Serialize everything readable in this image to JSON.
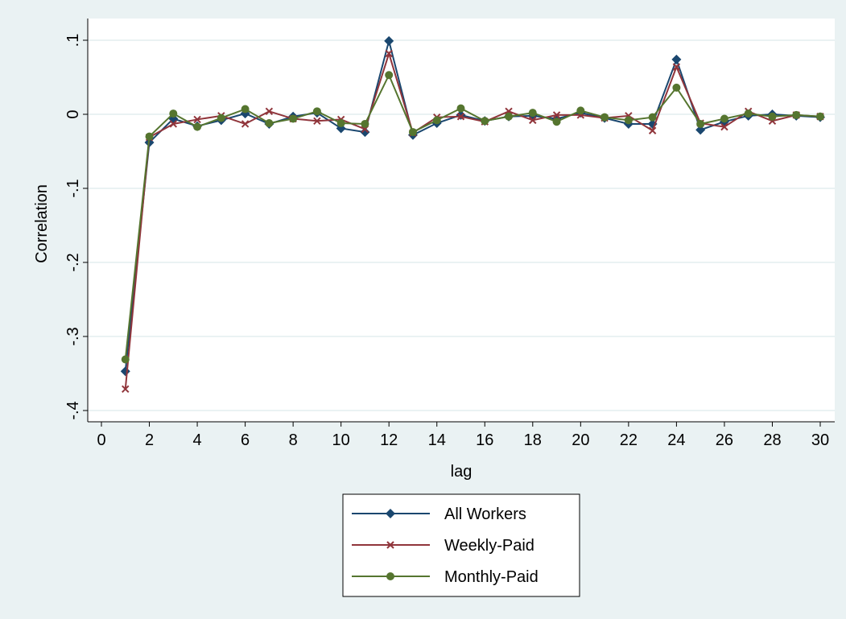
{
  "chart_data": {
    "type": "line",
    "xlabel": "lag",
    "ylabel": "Correlation",
    "xlim": [
      0,
      30
    ],
    "ylim": [
      -0.4,
      0.1
    ],
    "x_ticks": [
      0,
      2,
      4,
      6,
      8,
      10,
      12,
      14,
      16,
      18,
      20,
      22,
      24,
      26,
      28,
      30
    ],
    "x_tick_labels": [
      "0",
      "2",
      "4",
      "6",
      "8",
      "10",
      "12",
      "14",
      "16",
      "18",
      "20",
      "22",
      "24",
      "26",
      "28",
      "30"
    ],
    "y_ticks": [
      -0.4,
      -0.3,
      -0.2,
      -0.1,
      0,
      0.1
    ],
    "y_tick_labels": [
      "-.4",
      "-.3",
      "-.2",
      "-.1",
      "0",
      ".1"
    ],
    "grid": true,
    "legend_position": "bottom",
    "x": [
      1,
      2,
      3,
      4,
      5,
      6,
      7,
      8,
      9,
      10,
      11,
      12,
      13,
      14,
      15,
      16,
      17,
      18,
      19,
      20,
      21,
      22,
      23,
      24,
      25,
      26,
      27,
      28,
      29,
      30
    ],
    "series": [
      {
        "name": "All Workers",
        "color": "#1a476f",
        "marker": "diamond",
        "values": [
          -0.347,
          -0.038,
          -0.006,
          -0.016,
          -0.008,
          0.001,
          -0.013,
          -0.003,
          0.002,
          -0.019,
          -0.024,
          0.099,
          -0.028,
          -0.012,
          -0.001,
          -0.009,
          -0.003,
          -0.002,
          -0.006,
          0.002,
          -0.005,
          -0.013,
          -0.013,
          0.074,
          -0.021,
          -0.01,
          -0.002,
          0.0,
          -0.002,
          -0.004
        ]
      },
      {
        "name": "Weekly-Paid",
        "color": "#90353b",
        "marker": "x",
        "values": [
          -0.371,
          -0.031,
          -0.013,
          -0.007,
          -0.002,
          -0.013,
          0.004,
          -0.006,
          -0.009,
          -0.007,
          -0.02,
          0.082,
          -0.025,
          -0.004,
          -0.003,
          -0.01,
          0.004,
          -0.008,
          -0.001,
          -0.001,
          -0.005,
          -0.002,
          -0.022,
          0.064,
          -0.012,
          -0.017,
          0.004,
          -0.009,
          -0.001,
          -0.003
        ]
      },
      {
        "name": "Monthly-Paid",
        "color": "#55752f",
        "marker": "circle",
        "values": [
          -0.331,
          -0.03,
          0.001,
          -0.017,
          -0.005,
          0.007,
          -0.012,
          -0.006,
          0.004,
          -0.012,
          -0.013,
          0.053,
          -0.024,
          -0.008,
          0.008,
          -0.009,
          -0.003,
          0.002,
          -0.01,
          0.005,
          -0.004,
          -0.008,
          -0.004,
          0.036,
          -0.013,
          -0.006,
          0.001,
          -0.003,
          -0.001,
          -0.003
        ]
      }
    ]
  }
}
